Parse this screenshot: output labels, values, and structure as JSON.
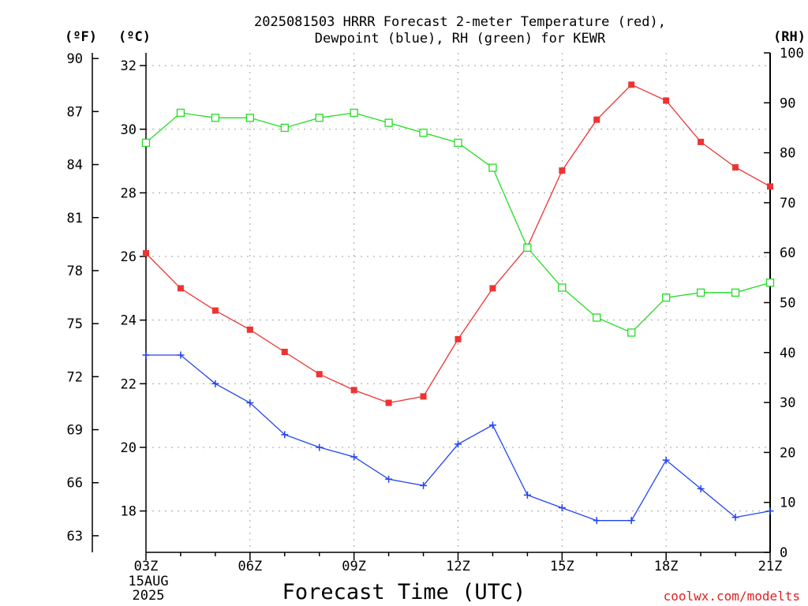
{
  "chart_data": {
    "type": "line",
    "title_lines": [
      "2025081503 HRRR Forecast 2-meter Temperature (red),",
      "Dewpoint (blue), RH (green) for KEWR"
    ],
    "xlabel": "Forecast Time (UTC)",
    "credit": "coolwx.com/modelts",
    "left_unit_f": "(ºF)",
    "left_unit_c": "(ºC)",
    "right_unit": "(RH)",
    "date_lines": [
      "15AUG",
      "2025"
    ],
    "x": [
      "03Z",
      "04Z",
      "05Z",
      "06Z",
      "07Z",
      "08Z",
      "09Z",
      "10Z",
      "11Z",
      "12Z",
      "13Z",
      "14Z",
      "15Z",
      "16Z",
      "17Z",
      "18Z",
      "19Z",
      "20Z",
      "21Z"
    ],
    "x_tick_labels": [
      "03Z",
      "06Z",
      "09Z",
      "12Z",
      "15Z",
      "18Z",
      "21Z"
    ],
    "y_c_ticks": [
      18,
      20,
      22,
      24,
      26,
      28,
      30,
      32
    ],
    "y_f_ticks": [
      63,
      66,
      69,
      72,
      75,
      78,
      81,
      84,
      87,
      90
    ],
    "y_rh_ticks": [
      0,
      10,
      20,
      30,
      40,
      50,
      60,
      70,
      80,
      90,
      100
    ],
    "ylim_c": [
      16.7,
      32.4
    ],
    "ylim_rh": [
      0,
      100
    ],
    "grid": true,
    "series": [
      {
        "name": "Temperature",
        "axis": "c",
        "color": "#ee3333",
        "marker": "filled-square",
        "values": [
          26.1,
          25.0,
          24.3,
          23.7,
          23.0,
          22.3,
          21.8,
          21.4,
          21.6,
          23.4,
          25.0,
          26.3,
          28.7,
          30.3,
          31.4,
          30.9,
          29.6,
          28.8,
          28.2
        ]
      },
      {
        "name": "Dewpoint",
        "axis": "c",
        "color": "#2244ee",
        "marker": "plus",
        "values": [
          22.9,
          22.9,
          22.0,
          21.4,
          20.4,
          20.0,
          19.7,
          19.0,
          18.8,
          20.1,
          20.7,
          18.5,
          18.1,
          17.7,
          17.7,
          19.6,
          18.7,
          17.8,
          18.0
        ]
      },
      {
        "name": "RH",
        "axis": "rh",
        "color": "#22dd22",
        "marker": "open-square",
        "values": [
          82,
          88,
          87,
          87,
          85,
          87,
          88,
          86,
          84,
          82,
          77,
          61,
          53,
          47,
          44,
          51,
          52,
          52,
          54
        ]
      }
    ]
  }
}
